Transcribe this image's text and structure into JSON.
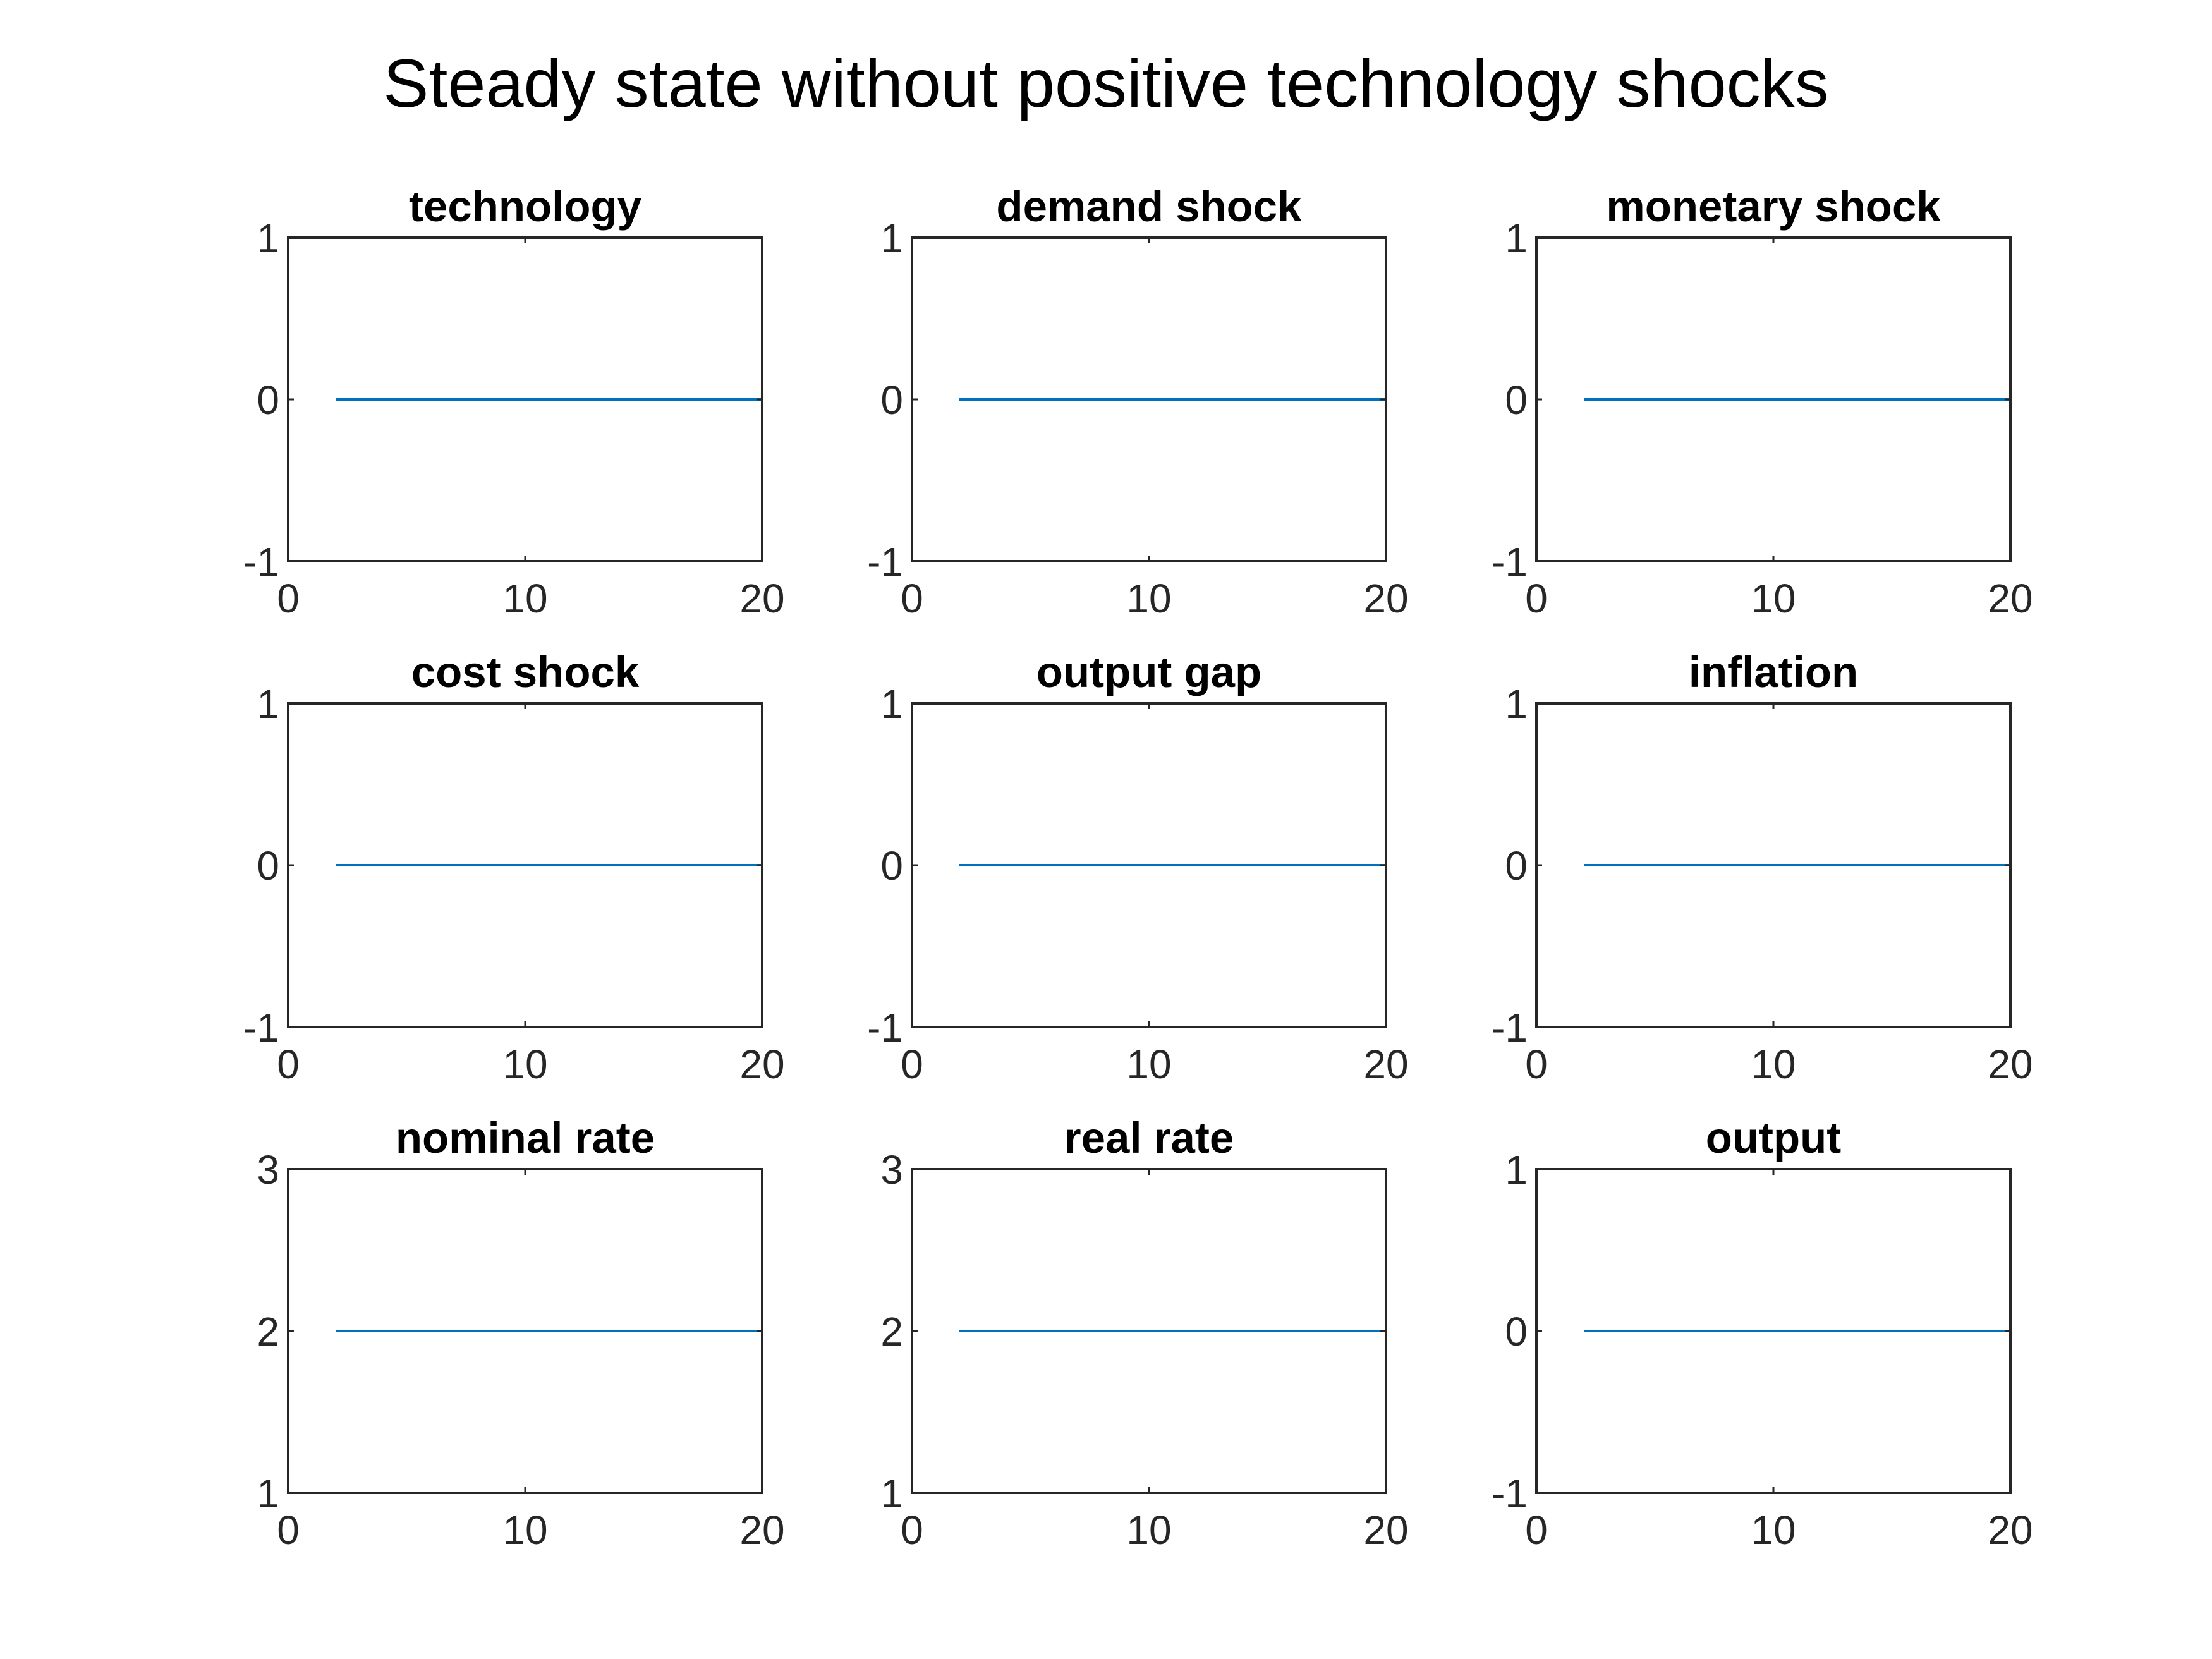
{
  "figure": {
    "title": "Steady state without positive technology shocks",
    "line_color": "#0072BD",
    "axes_color": "#262626"
  },
  "chart_data": [
    {
      "type": "line",
      "title": "technology",
      "xlabel": "",
      "ylabel": "",
      "xlim": [
        0,
        20
      ],
      "ylim": [
        -1,
        1
      ],
      "xticks": [
        0,
        10,
        20
      ],
      "yticks": [
        -1,
        0,
        1
      ],
      "series": [
        {
          "x": [
            2,
            20
          ],
          "y": [
            0,
            0
          ]
        }
      ]
    },
    {
      "type": "line",
      "title": "demand shock",
      "xlabel": "",
      "ylabel": "",
      "xlim": [
        0,
        20
      ],
      "ylim": [
        -1,
        1
      ],
      "xticks": [
        0,
        10,
        20
      ],
      "yticks": [
        -1,
        0,
        1
      ],
      "series": [
        {
          "x": [
            2,
            20
          ],
          "y": [
            0,
            0
          ]
        }
      ]
    },
    {
      "type": "line",
      "title": "monetary shock",
      "xlabel": "",
      "ylabel": "",
      "xlim": [
        0,
        20
      ],
      "ylim": [
        -1,
        1
      ],
      "xticks": [
        0,
        10,
        20
      ],
      "yticks": [
        -1,
        0,
        1
      ],
      "series": [
        {
          "x": [
            2,
            20
          ],
          "y": [
            0,
            0
          ]
        }
      ]
    },
    {
      "type": "line",
      "title": "cost shock",
      "xlabel": "",
      "ylabel": "",
      "xlim": [
        0,
        20
      ],
      "ylim": [
        -1,
        1
      ],
      "xticks": [
        0,
        10,
        20
      ],
      "yticks": [
        -1,
        0,
        1
      ],
      "series": [
        {
          "x": [
            2,
            20
          ],
          "y": [
            0,
            0
          ]
        }
      ]
    },
    {
      "type": "line",
      "title": "output gap",
      "xlabel": "",
      "ylabel": "",
      "xlim": [
        0,
        20
      ],
      "ylim": [
        -1,
        1
      ],
      "xticks": [
        0,
        10,
        20
      ],
      "yticks": [
        -1,
        0,
        1
      ],
      "series": [
        {
          "x": [
            2,
            20
          ],
          "y": [
            0,
            0
          ]
        }
      ]
    },
    {
      "type": "line",
      "title": "inflation",
      "xlabel": "",
      "ylabel": "",
      "xlim": [
        0,
        20
      ],
      "ylim": [
        -1,
        1
      ],
      "xticks": [
        0,
        10,
        20
      ],
      "yticks": [
        -1,
        0,
        1
      ],
      "series": [
        {
          "x": [
            2,
            20
          ],
          "y": [
            0,
            0
          ]
        }
      ]
    },
    {
      "type": "line",
      "title": "nominal rate",
      "xlabel": "",
      "ylabel": "",
      "xlim": [
        0,
        20
      ],
      "ylim": [
        1,
        3
      ],
      "xticks": [
        0,
        10,
        20
      ],
      "yticks": [
        1,
        2,
        3
      ],
      "series": [
        {
          "x": [
            2,
            20
          ],
          "y": [
            2,
            2
          ]
        }
      ]
    },
    {
      "type": "line",
      "title": "real rate",
      "xlabel": "",
      "ylabel": "",
      "xlim": [
        0,
        20
      ],
      "ylim": [
        1,
        3
      ],
      "xticks": [
        0,
        10,
        20
      ],
      "yticks": [
        1,
        2,
        3
      ],
      "series": [
        {
          "x": [
            2,
            20
          ],
          "y": [
            2,
            2
          ]
        }
      ]
    },
    {
      "type": "line",
      "title": "output",
      "xlabel": "",
      "ylabel": "",
      "xlim": [
        0,
        20
      ],
      "ylim": [
        -1,
        1
      ],
      "xticks": [
        0,
        10,
        20
      ],
      "yticks": [
        -1,
        0,
        1
      ],
      "series": [
        {
          "x": [
            2,
            20
          ],
          "y": [
            0,
            0
          ]
        }
      ]
    }
  ]
}
